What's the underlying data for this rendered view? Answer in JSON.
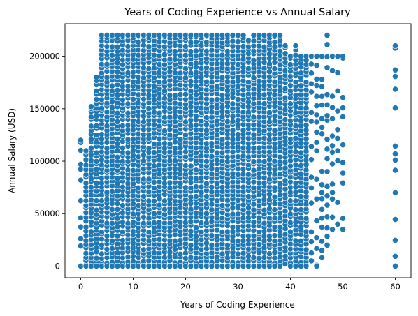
{
  "chart_data": {
    "type": "scatter",
    "title": "Years of Coding Experience vs Annual Salary",
    "xlabel": "Years of Coding Experience",
    "ylabel": "Annual Salary (USD)",
    "xlim": [
      -3,
      63
    ],
    "ylim": [
      -11000,
      231000
    ],
    "xticks": [
      0,
      10,
      20,
      30,
      40,
      50,
      60
    ],
    "yticks": [
      0,
      50000,
      100000,
      150000,
      200000
    ],
    "grid": false,
    "color": "#1f77b4",
    "x_columns": [
      0,
      1,
      2,
      3,
      4,
      5,
      6,
      7,
      8,
      9,
      10,
      11,
      12,
      13,
      14,
      15,
      16,
      17,
      18,
      19,
      20,
      21,
      22,
      23,
      24,
      25,
      26,
      27,
      28,
      29,
      30,
      31,
      32,
      33,
      34,
      35,
      36,
      37,
      38,
      39,
      40,
      41,
      42,
      43,
      44,
      45,
      46,
      47,
      48,
      49,
      50,
      60
    ],
    "y_bottom": [
      0,
      0,
      0,
      0,
      0,
      0,
      0,
      0,
      0,
      0,
      0,
      0,
      0,
      0,
      0,
      0,
      0,
      0,
      0,
      0,
      0,
      0,
      0,
      0,
      0,
      0,
      0,
      0,
      0,
      0,
      0,
      0,
      0,
      0,
      0,
      0,
      0,
      0,
      0,
      2000,
      0,
      0,
      0,
      0,
      5000,
      0,
      8000,
      20000,
      35000,
      40000,
      35000,
      0
    ],
    "y_top": [
      120000,
      110000,
      152000,
      180000,
      220000,
      220000,
      220000,
      220000,
      220000,
      220000,
      220000,
      220000,
      220000,
      220000,
      220000,
      220000,
      220000,
      220000,
      220000,
      220000,
      220000,
      220000,
      220000,
      220000,
      220000,
      220000,
      220000,
      220000,
      220000,
      220000,
      220000,
      220000,
      215000,
      220000,
      220000,
      220000,
      220000,
      220000,
      220000,
      210000,
      200000,
      210000,
      200000,
      200000,
      200000,
      200000,
      200000,
      220000,
      200000,
      200000,
      200000,
      210000
    ]
  }
}
